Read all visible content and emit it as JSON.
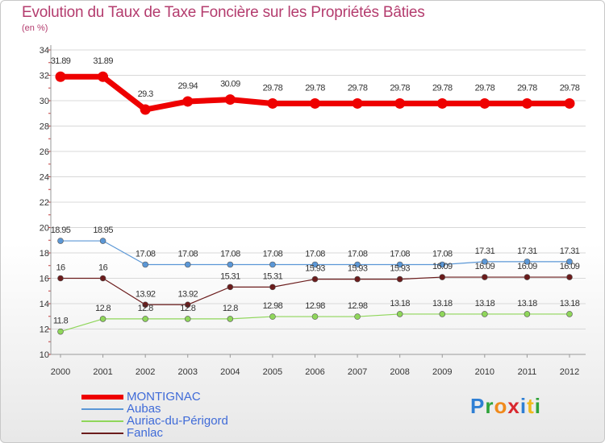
{
  "chart_data": {
    "type": "line",
    "title": "Evolution du Taux de Taxe Foncière sur les Propriétés Bâties",
    "subtitle": "(en %)",
    "categories": [
      "2000",
      "2001",
      "2002",
      "2003",
      "2004",
      "2005",
      "2006",
      "2007",
      "2008",
      "2009",
      "2010",
      "2011",
      "2012"
    ],
    "ylim": [
      10,
      34
    ],
    "yticks": [
      10,
      12,
      14,
      16,
      18,
      20,
      22,
      24,
      26,
      28,
      30,
      32,
      34
    ],
    "series": [
      {
        "name": "MONTIGNAC",
        "color": "#ee0000",
        "values": [
          31.89,
          31.89,
          29.3,
          29.94,
          30.09,
          29.78,
          29.78,
          29.78,
          29.78,
          29.78,
          29.78,
          29.78,
          29.78
        ],
        "labels": [
          "31.89",
          "31.89",
          "29.3",
          "29.94",
          "30.09",
          "29.78",
          "29.78",
          "29.78",
          "29.78",
          "29.78",
          "29.78",
          "29.78",
          "29.78"
        ]
      },
      {
        "name": "Aubas",
        "color": "#5b97d6",
        "values": [
          18.95,
          18.95,
          17.08,
          17.08,
          17.08,
          17.08,
          17.08,
          17.08,
          17.08,
          17.08,
          17.31,
          17.31,
          17.31
        ],
        "labels": [
          "18.95",
          "18.95",
          "17.08",
          "17.08",
          "17.08",
          "17.08",
          "17.08",
          "17.08",
          "17.08",
          "17.08",
          "17.31",
          "17.31",
          "17.31"
        ]
      },
      {
        "name": "Auriac-du-Périgord",
        "color": "#8fd65a",
        "values": [
          11.8,
          12.8,
          12.8,
          12.8,
          12.8,
          12.98,
          12.98,
          12.98,
          13.18,
          13.18,
          13.18,
          13.18,
          13.18
        ],
        "labels": [
          "11.8",
          "12.8",
          "12.8",
          "12.8",
          "12.8",
          "12.98",
          "12.98",
          "12.98",
          "13.18",
          "13.18",
          "13.18",
          "13.18",
          "13.18"
        ]
      },
      {
        "name": "Fanlac",
        "color": "#6b1c1c",
        "values": [
          16,
          16,
          13.92,
          13.92,
          15.31,
          15.31,
          15.93,
          15.93,
          15.93,
          16.09,
          16.09,
          16.09,
          16.09
        ],
        "labels": [
          "16",
          "16",
          "13.92",
          "13.92",
          "15.31",
          "15.31",
          "15.93",
          "15.93",
          "15.93",
          "16.09",
          "16.09",
          "16.09",
          "16.09"
        ]
      }
    ]
  },
  "logo": {
    "p": "P",
    "r": "r",
    "o": "o",
    "x": "x",
    "i1": "i",
    "t": "t",
    "i2": "i"
  }
}
